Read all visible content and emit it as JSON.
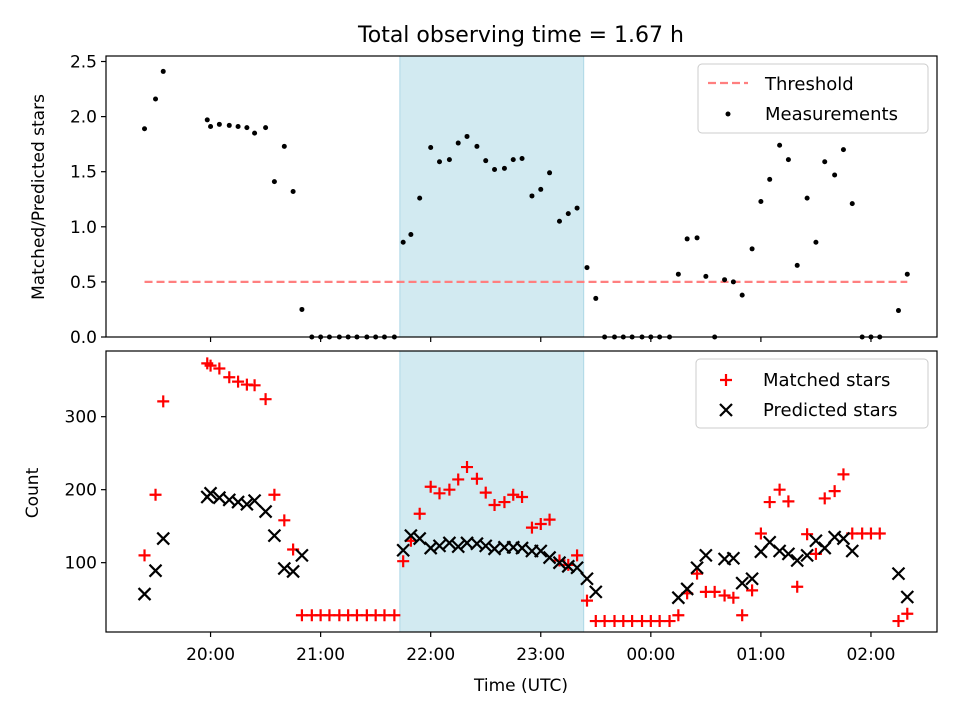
{
  "title": "Total observing time = 1.67 h",
  "colors": {
    "threshold": "#ff7f7f",
    "measurements": "#000000",
    "matched": "#ff0000",
    "predicted": "#000000",
    "observing_span": "#add8e6"
  },
  "chart_data": [
    {
      "type": "scatter",
      "panel": "top",
      "ylabel": "Matched/Predicted stars",
      "xlabel": "",
      "ylim": [
        0,
        2.55
      ],
      "yticks": [
        0.0,
        0.5,
        1.0,
        1.5,
        2.0,
        2.5
      ],
      "ytick_labels": [
        "0.0",
        "0.5",
        "1.0",
        "1.5",
        "2.0",
        "2.5"
      ],
      "xlim_hours": [
        19.05,
        26.6
      ],
      "shaded_span_hours": [
        21.72,
        23.39
      ],
      "legend_placement": "top-right",
      "legend": [
        "Threshold",
        "Measurements"
      ],
      "threshold": {
        "name": "Threshold",
        "y": 0.5,
        "x_range_hours": [
          19.4,
          26.33
        ]
      },
      "series": [
        {
          "name": "Measurements",
          "x": [
            19.4,
            19.5,
            19.57,
            19.97,
            20.0,
            20.08,
            20.17,
            20.25,
            20.33,
            20.4,
            20.5,
            20.58,
            20.67,
            20.75,
            20.83,
            20.92,
            21.0,
            21.08,
            21.17,
            21.25,
            21.33,
            21.42,
            21.5,
            21.58,
            21.67,
            21.75,
            21.82,
            21.9,
            22.0,
            22.08,
            22.17,
            22.25,
            22.33,
            22.42,
            22.5,
            22.58,
            22.67,
            22.75,
            22.83,
            22.92,
            23.0,
            23.08,
            23.17,
            23.25,
            23.33,
            23.42,
            23.5,
            23.58,
            23.67,
            23.75,
            23.83,
            23.92,
            24.0,
            24.08,
            24.17,
            24.25,
            24.33,
            24.42,
            24.5,
            24.58,
            24.67,
            24.75,
            24.83,
            24.92,
            25.0,
            25.08,
            25.17,
            25.25,
            25.33,
            25.42,
            25.5,
            25.58,
            25.67,
            25.75,
            25.83,
            25.92,
            26.0,
            26.08,
            26.25,
            26.33
          ],
          "y": [
            1.89,
            2.16,
            2.41,
            1.97,
            1.91,
            1.93,
            1.92,
            1.91,
            1.9,
            1.85,
            1.9,
            1.41,
            1.73,
            1.32,
            0.25,
            0.0,
            0.0,
            0.0,
            0.0,
            0.0,
            0.0,
            0.0,
            0.0,
            0.0,
            0.0,
            0.86,
            0.93,
            1.26,
            1.72,
            1.59,
            1.61,
            1.76,
            1.82,
            1.73,
            1.6,
            1.52,
            1.53,
            1.61,
            1.62,
            1.28,
            1.34,
            1.49,
            1.05,
            1.12,
            1.17,
            0.63,
            0.35,
            0.0,
            0.0,
            0.0,
            0.0,
            0.0,
            0.0,
            0.0,
            0.0,
            0.57,
            0.89,
            0.9,
            0.55,
            0.0,
            0.52,
            0.5,
            0.38,
            0.8,
            1.23,
            1.43,
            1.74,
            1.61,
            0.65,
            1.26,
            0.86,
            1.59,
            1.47,
            1.7,
            1.21,
            0.0,
            0.0,
            0.0,
            0.24,
            0.57
          ]
        }
      ]
    },
    {
      "type": "scatter",
      "panel": "bottom",
      "ylabel": "Count",
      "xlabel": "Time (UTC)",
      "ylim": [
        5,
        390
      ],
      "yticks": [
        100,
        200,
        300
      ],
      "ytick_labels": [
        "100",
        "200",
        "300"
      ],
      "xlim_hours": [
        19.05,
        26.6
      ],
      "xticks_hours": [
        20,
        21,
        22,
        23,
        24,
        25,
        26
      ],
      "xtick_labels": [
        "20:00",
        "21:00",
        "22:00",
        "23:00",
        "00:00",
        "01:00",
        "02:00"
      ],
      "shaded_span_hours": [
        21.72,
        23.39
      ],
      "legend_placement": "top-right",
      "legend": [
        "Matched stars",
        "Predicted stars"
      ],
      "series": [
        {
          "name": "Matched stars",
          "marker": "plus",
          "x": [
            19.4,
            19.5,
            19.57,
            19.97,
            20.0,
            20.08,
            20.17,
            20.25,
            20.33,
            20.4,
            20.5,
            20.58,
            20.67,
            20.75,
            20.83,
            20.92,
            21.0,
            21.08,
            21.17,
            21.25,
            21.33,
            21.42,
            21.5,
            21.58,
            21.67,
            21.75,
            21.82,
            21.9,
            22.0,
            22.08,
            22.17,
            22.25,
            22.33,
            22.42,
            22.5,
            22.58,
            22.67,
            22.75,
            22.83,
            22.92,
            23.0,
            23.08,
            23.17,
            23.25,
            23.33,
            23.42,
            23.5,
            23.58,
            23.67,
            23.75,
            23.83,
            23.92,
            24.0,
            24.08,
            24.17,
            24.25,
            24.33,
            24.42,
            24.5,
            24.58,
            24.67,
            24.75,
            24.83,
            24.92,
            25.0,
            25.08,
            25.17,
            25.25,
            25.33,
            25.42,
            25.5,
            25.58,
            25.67,
            25.75,
            25.83,
            25.92,
            26.0,
            26.08,
            26.25,
            26.33
          ],
          "y": [
            110,
            193,
            321,
            373,
            370,
            366,
            354,
            348,
            344,
            343,
            324,
            193,
            158,
            118,
            28,
            28,
            28,
            28,
            28,
            28,
            28,
            28,
            28,
            28,
            28,
            102,
            130,
            167,
            204,
            195,
            200,
            214,
            231,
            215,
            196,
            179,
            183,
            193,
            190,
            148,
            153,
            159,
            103,
            97,
            110,
            48,
            20,
            20,
            20,
            20,
            20,
            20,
            20,
            20,
            20,
            28,
            58,
            85,
            60,
            60,
            55,
            52,
            28,
            62,
            140,
            183,
            200,
            184,
            67,
            139,
            112,
            188,
            198,
            221,
            140,
            140,
            140,
            140,
            20,
            30
          ]
        },
        {
          "name": "Predicted stars",
          "marker": "x",
          "x": [
            19.4,
            19.5,
            19.57,
            19.97,
            20.0,
            20.08,
            20.17,
            20.25,
            20.33,
            20.4,
            20.5,
            20.58,
            20.67,
            20.75,
            20.83,
            21.75,
            21.82,
            21.9,
            22.0,
            22.08,
            22.17,
            22.25,
            22.33,
            22.42,
            22.5,
            22.58,
            22.67,
            22.75,
            22.83,
            22.92,
            23.0,
            23.08,
            23.17,
            23.25,
            23.33,
            23.42,
            23.5,
            24.25,
            24.33,
            24.42,
            24.5,
            24.67,
            24.75,
            24.83,
            24.92,
            25.0,
            25.08,
            25.17,
            25.25,
            25.33,
            25.42,
            25.5,
            25.58,
            25.67,
            25.75,
            25.83,
            26.25,
            26.33
          ],
          "y": [
            57,
            89,
            133,
            190,
            195,
            189,
            186,
            183,
            180,
            185,
            170,
            137,
            92,
            88,
            110,
            117,
            137,
            133,
            120,
            123,
            127,
            122,
            127,
            126,
            123,
            119,
            121,
            121,
            120,
            116,
            116,
            107,
            100,
            95,
            93,
            78,
            60,
            52,
            64,
            93,
            110,
            105,
            106,
            72,
            78,
            115,
            128,
            116,
            112,
            103,
            110,
            130,
            120,
            135,
            133,
            116,
            85,
            53
          ]
        }
      ]
    }
  ]
}
